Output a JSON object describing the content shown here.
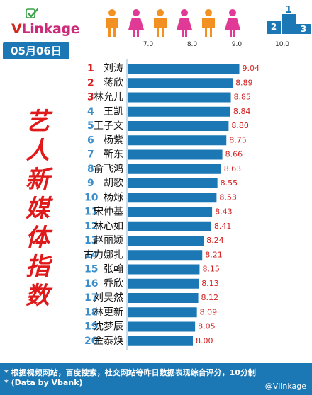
{
  "logo": {
    "v": "V",
    "rest": "Linkage"
  },
  "date": "05月06日",
  "vertical_title": [
    "艺",
    "人",
    "新",
    "媒",
    "体",
    "指",
    "数"
  ],
  "colors": {
    "bar": "#1c78b4",
    "rank_top": "#d42020",
    "rank_rest": "#3a8fcc",
    "value": "#d42020",
    "footer": "#1c78b4",
    "person_orange": "#f29022",
    "person_pink": "#e03a96"
  },
  "icons": [
    "logo-check-icon",
    "person-icon",
    "podium-icon"
  ],
  "footer": {
    "note1": "* 根据视频网站，百度搜索，社交网站等昨日数据表现综合评分，10分制",
    "note2": "* (Data by Vbank)",
    "credit": "@Vlinkage"
  },
  "podium": {
    "first": "1",
    "second": "2",
    "third": "3"
  },
  "chart_data": {
    "type": "bar",
    "orientation": "horizontal",
    "title": "艺人新媒体指数",
    "xlim": [
      7.0,
      10.0
    ],
    "ticks": [
      "7.0",
      "8.0",
      "9.0",
      "10.0"
    ],
    "categories": [
      "刘涛",
      "蒋欣",
      "林允儿",
      "王凯",
      "王子文",
      "杨紫",
      "靳东",
      "俞飞鸿",
      "胡歌",
      "杨烁",
      "宋仲基",
      "林心如",
      "赵丽颖",
      "古力娜扎",
      "张翰",
      "乔欣",
      "刘昊然",
      "林更新",
      "沈梦辰",
      "金泰焕"
    ],
    "ranks": [
      "1",
      "2",
      "3",
      "4",
      "5",
      "6",
      "7",
      "8",
      "9",
      "10",
      "11",
      "12",
      "13",
      "14",
      "15",
      "16",
      "17",
      "18",
      "19",
      "20"
    ],
    "values": [
      9.04,
      8.89,
      8.85,
      8.84,
      8.8,
      8.75,
      8.66,
      8.63,
      8.55,
      8.53,
      8.43,
      8.41,
      8.24,
      8.21,
      8.15,
      8.13,
      8.12,
      8.09,
      8.05,
      8.0
    ],
    "value_labels": [
      "9.04",
      "8.89",
      "8.85",
      "8.84",
      "8.80",
      "8.75",
      "8.66",
      "8.63",
      "8.55",
      "8.53",
      "8.43",
      "8.41",
      "8.24",
      "8.21",
      "8.15",
      "8.13",
      "8.12",
      "8.09",
      "8.05",
      "8.00"
    ]
  }
}
